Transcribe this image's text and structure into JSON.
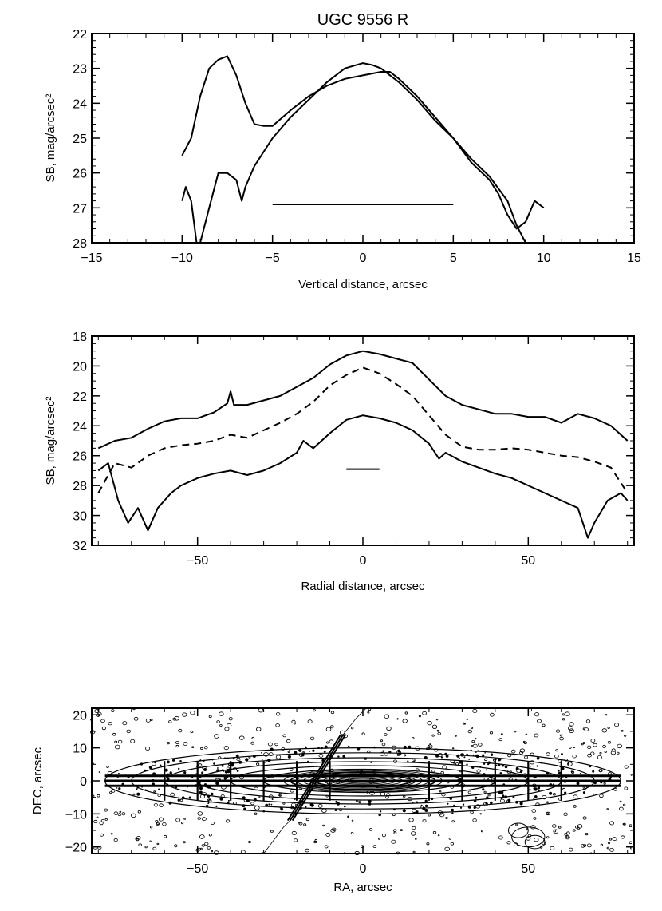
{
  "title": "UGC 9556 R",
  "chart_data": [
    {
      "type": "line",
      "xlabel": "Vertical distance, arcsec",
      "ylabel": "SB, mag/arcsec²",
      "xlim": [
        -15,
        15
      ],
      "ylim": [
        28,
        22
      ],
      "y_inverted": true,
      "xticks": [
        -15,
        -10,
        -5,
        0,
        5,
        10,
        15
      ],
      "yticks": [
        22,
        23,
        24,
        25,
        26,
        27,
        28
      ],
      "xtick_labels": [
        "−15",
        "−10",
        "−5",
        "0",
        "5",
        "10",
        "15"
      ],
      "ytick_labels": [
        "22",
        "23",
        "24",
        "25",
        "26",
        "27",
        "28"
      ],
      "series": [
        {
          "style": "solid",
          "x": [
            -10,
            -9.5,
            -9,
            -8.5,
            -8,
            -7.5,
            -7,
            -6.5,
            -6,
            -5.5,
            -5,
            -4,
            -3,
            -2,
            -1,
            0,
            1,
            1.5,
            2,
            3,
            4,
            5,
            6,
            7,
            8,
            8.5,
            9
          ],
          "y": [
            25.5,
            25.0,
            23.8,
            23.0,
            22.75,
            22.65,
            23.2,
            24.0,
            24.6,
            24.65,
            24.65,
            24.2,
            23.8,
            23.5,
            23.3,
            23.2,
            23.1,
            23.1,
            23.3,
            23.8,
            24.4,
            25.0,
            25.6,
            26.1,
            26.8,
            27.5,
            28
          ]
        },
        {
          "style": "solid",
          "x": [
            -10,
            -9.8,
            -9.5,
            -9.2,
            -9,
            -8.5,
            -8,
            -7.5,
            -7,
            -6.7,
            -6.5,
            -6,
            -5,
            -4,
            -3,
            -2,
            -1,
            0,
            0.5,
            1,
            2,
            3,
            4,
            5,
            6,
            7,
            7.5,
            8,
            8.5,
            9,
            9.5,
            10
          ],
          "y": [
            26.8,
            26.4,
            26.8,
            28,
            28,
            27.0,
            26.0,
            26.0,
            26.2,
            26.8,
            26.4,
            25.8,
            25.0,
            24.4,
            23.9,
            23.4,
            23.0,
            22.85,
            22.9,
            23.0,
            23.4,
            23.9,
            24.5,
            25.0,
            25.7,
            26.2,
            26.6,
            27.2,
            27.6,
            27.4,
            26.8,
            27.0
          ]
        },
        {
          "style": "solid",
          "x": [
            -5,
            5
          ],
          "y": [
            26.9,
            26.9
          ]
        }
      ]
    },
    {
      "type": "line",
      "xlabel": "Radial distance, arcsec",
      "ylabel": "SB, mag/arcsec²",
      "xlim": [
        -82,
        82
      ],
      "ylim": [
        32,
        18
      ],
      "y_inverted": true,
      "xticks": [
        -50,
        0,
        50
      ],
      "yticks": [
        18,
        20,
        22,
        24,
        26,
        28,
        30,
        32
      ],
      "xtick_labels": [
        "−50",
        "0",
        "50"
      ],
      "ytick_labels": [
        "18",
        "20",
        "22",
        "24",
        "26",
        "28",
        "30",
        "32"
      ],
      "series": [
        {
          "style": "solid",
          "x": [
            -80,
            -75,
            -70,
            -65,
            -60,
            -55,
            -50,
            -45,
            -41,
            -40,
            -39,
            -35,
            -30,
            -25,
            -20,
            -15,
            -10,
            -5,
            0,
            5,
            10,
            15,
            20,
            25,
            30,
            35,
            40,
            45,
            50,
            55,
            60,
            65,
            70,
            75,
            80
          ],
          "y": [
            25.5,
            25.0,
            24.8,
            24.2,
            23.7,
            23.5,
            23.5,
            23.1,
            22.5,
            21.7,
            22.6,
            22.6,
            22.3,
            22.0,
            21.4,
            20.8,
            19.9,
            19.3,
            19.0,
            19.2,
            19.5,
            19.8,
            20.9,
            22.0,
            22.6,
            22.9,
            23.2,
            23.2,
            23.4,
            23.4,
            23.8,
            23.2,
            23.5,
            24.0,
            25.0
          ]
        },
        {
          "style": "dashed",
          "x": [
            -80,
            -75,
            -70,
            -65,
            -60,
            -55,
            -50,
            -45,
            -40,
            -35,
            -30,
            -25,
            -20,
            -15,
            -10,
            -5,
            0,
            5,
            10,
            15,
            20,
            25,
            30,
            35,
            40,
            45,
            50,
            55,
            60,
            65,
            70,
            75,
            80
          ],
          "y": [
            28.5,
            26.5,
            26.8,
            26.0,
            25.5,
            25.3,
            25.2,
            25.0,
            24.6,
            24.8,
            24.3,
            23.8,
            23.2,
            22.4,
            21.3,
            20.6,
            20.1,
            20.5,
            21.2,
            22.0,
            23.3,
            24.6,
            25.4,
            25.6,
            25.6,
            25.5,
            25.6,
            25.8,
            26.0,
            26.1,
            26.4,
            26.8,
            28.5
          ]
        },
        {
          "style": "solid",
          "x": [
            -80,
            -77,
            -74,
            -71,
            -68,
            -65,
            -62,
            -58,
            -55,
            -50,
            -45,
            -40,
            -35,
            -30,
            -25,
            -20,
            -18,
            -15,
            -10,
            -5,
            0,
            5,
            10,
            15,
            20,
            23,
            25,
            30,
            35,
            40,
            45,
            50,
            55,
            60,
            65,
            68,
            70,
            74,
            78,
            80
          ],
          "y": [
            27.0,
            26.5,
            29.0,
            30.5,
            29.5,
            31.0,
            29.5,
            28.5,
            28.0,
            27.5,
            27.2,
            27.0,
            27.3,
            27.0,
            26.5,
            25.8,
            25.0,
            25.5,
            24.5,
            23.6,
            23.3,
            23.5,
            23.8,
            24.3,
            25.2,
            26.2,
            25.8,
            26.4,
            26.8,
            27.2,
            27.5,
            28.0,
            28.5,
            29.0,
            29.5,
            31.5,
            30.5,
            29.0,
            28.5,
            29.0
          ]
        },
        {
          "style": "solid",
          "x": [
            -5,
            5
          ],
          "y": [
            26.9,
            26.9
          ]
        }
      ]
    },
    {
      "type": "contour",
      "xlabel": "RA, arcsec",
      "ylabel": "DEC, arcsec",
      "xlim": [
        -82,
        82
      ],
      "ylim": [
        -22,
        22
      ],
      "xticks": [
        -50,
        0,
        50
      ],
      "yticks": [
        20,
        10,
        0,
        -10,
        -20
      ],
      "xtick_labels": [
        "−50",
        "0",
        "50"
      ],
      "ytick_labels": [
        "20",
        "10",
        "0",
        "−10",
        "−20"
      ],
      "contour_halfwidths_arcsec": [
        78,
        70,
        60,
        50,
        40,
        30,
        22,
        15
      ],
      "contour_halfheights_arcsec": [
        10,
        8.5,
        7,
        5.8,
        4.6,
        3.5,
        2.6,
        1.8
      ],
      "horizontal_slit_dec": [
        -1.5,
        0,
        1.5
      ],
      "horizontal_slit_ra": [
        -78,
        78
      ],
      "vertical_cuts_ra": [
        -60,
        -50,
        -40,
        -30,
        -20,
        -10,
        20,
        30,
        40,
        50,
        60
      ],
      "vertical_cuts_dec": [
        -6,
        6
      ],
      "inclined_slit_ra": [
        -22,
        -6
      ],
      "inclined_slit_dec": [
        -12,
        14
      ]
    }
  ]
}
